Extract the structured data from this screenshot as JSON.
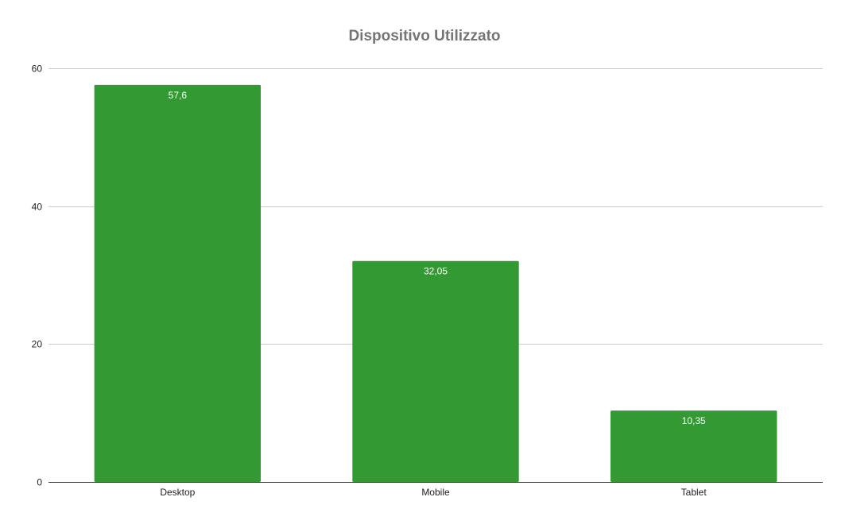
{
  "chart_data": {
    "type": "bar",
    "title": "Dispositivo Utilizzato",
    "xlabel": "",
    "ylabel": "",
    "categories": [
      "Desktop",
      "Mobile",
      "Tablet"
    ],
    "values": [
      57.6,
      32.05,
      10.35
    ],
    "data_labels": [
      "57,6",
      "32,05",
      "10,35"
    ],
    "ylim": [
      0,
      60
    ],
    "yticks": [
      0,
      20,
      40,
      60
    ],
    "ytick_labels": [
      "0",
      "20",
      "40",
      "60"
    ],
    "grid": true,
    "legend": "none",
    "bar_color": "#339933",
    "grid_color": "#cccccc",
    "axis_color": "#333333",
    "title_color": "#757575"
  }
}
